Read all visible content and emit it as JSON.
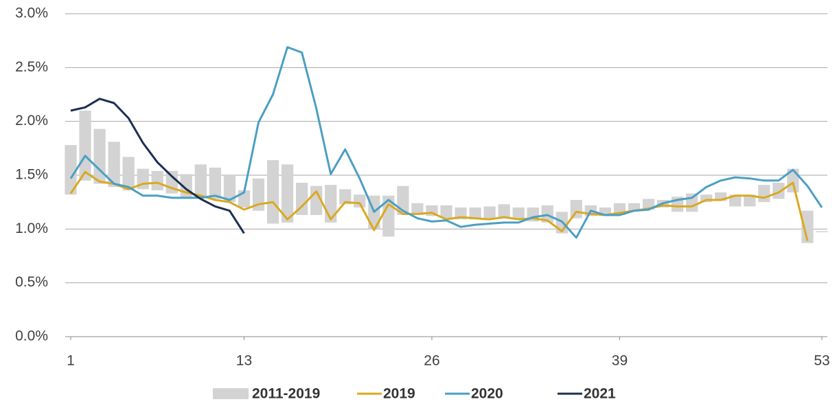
{
  "chart_data": {
    "type": "line",
    "x": [
      1,
      2,
      3,
      4,
      5,
      6,
      7,
      8,
      9,
      10,
      11,
      12,
      13,
      14,
      15,
      16,
      17,
      18,
      19,
      20,
      21,
      22,
      23,
      24,
      25,
      26,
      27,
      28,
      29,
      30,
      31,
      32,
      33,
      34,
      35,
      36,
      37,
      38,
      39,
      40,
      41,
      42,
      43,
      44,
      45,
      46,
      47,
      48,
      49,
      50,
      51,
      52,
      53
    ],
    "xlim": [
      1,
      53
    ],
    "xticks": [
      1,
      13,
      26,
      39,
      53
    ],
    "ylim": [
      0,
      3
    ],
    "yticks": [
      {
        "value": 0,
        "label": "0.0%"
      },
      {
        "value": 0.5,
        "label": "0.5%"
      },
      {
        "value": 1,
        "label": "1.0%"
      },
      {
        "value": 1.5,
        "label": "1.5%"
      },
      {
        "value": 2,
        "label": "2.0%"
      },
      {
        "value": 2.5,
        "label": "2.5%"
      },
      {
        "value": 3,
        "label": "3.0%"
      }
    ],
    "grid": true,
    "legend": "bottom",
    "series": [
      {
        "name": "2011-2019",
        "type": "range",
        "color": "#d3d3d3",
        "low": [
          1.32,
          1.45,
          1.42,
          1.39,
          1.36,
          1.37,
          1.36,
          1.33,
          1.3,
          1.29,
          1.28,
          1.25,
          1.2,
          1.17,
          1.05,
          1.06,
          1.13,
          1.13,
          1.06,
          1.23,
          1.2,
          1.0,
          0.93,
          1.13,
          1.13,
          1.12,
          1.1,
          1.09,
          1.09,
          1.09,
          1.1,
          1.09,
          1.07,
          1.06,
          0.96,
          1.1,
          1.12,
          1.12,
          1.13,
          1.17,
          1.18,
          1.2,
          1.16,
          1.16,
          1.25,
          1.26,
          1.21,
          1.21,
          1.25,
          1.28,
          1.34,
          0.87,
          0.97
        ],
        "high": [
          1.78,
          2.1,
          1.93,
          1.81,
          1.67,
          1.56,
          1.54,
          1.54,
          1.51,
          1.6,
          1.57,
          1.5,
          1.36,
          1.47,
          1.64,
          1.6,
          1.43,
          1.4,
          1.41,
          1.37,
          1.32,
          1.31,
          1.31,
          1.4,
          1.24,
          1.22,
          1.22,
          1.2,
          1.2,
          1.21,
          1.23,
          1.2,
          1.2,
          1.22,
          1.16,
          1.27,
          1.22,
          1.2,
          1.24,
          1.24,
          1.28,
          1.27,
          1.3,
          1.33,
          1.32,
          1.34,
          1.32,
          1.32,
          1.41,
          1.43,
          1.56,
          1.17,
          0.98
        ]
      },
      {
        "name": "2019",
        "color": "#dba81f",
        "values": [
          1.33,
          1.53,
          1.44,
          1.42,
          1.37,
          1.42,
          1.43,
          1.38,
          1.34,
          1.31,
          1.27,
          1.25,
          1.18,
          1.23,
          1.25,
          1.09,
          1.21,
          1.35,
          1.09,
          1.25,
          1.24,
          0.99,
          1.23,
          1.14,
          1.14,
          1.15,
          1.09,
          1.11,
          1.1,
          1.09,
          1.11,
          1.09,
          1.1,
          1.08,
          0.98,
          1.16,
          1.14,
          1.13,
          1.15,
          1.17,
          1.19,
          1.22,
          1.21,
          1.21,
          1.27,
          1.27,
          1.31,
          1.31,
          1.29,
          1.34,
          1.43,
          0.89,
          null
        ]
      },
      {
        "name": "2020",
        "color": "#4a9fc4",
        "values": [
          1.47,
          1.68,
          1.55,
          1.42,
          1.39,
          1.31,
          1.31,
          1.29,
          1.29,
          1.29,
          1.31,
          1.27,
          1.34,
          1.99,
          2.25,
          2.69,
          2.64,
          2.12,
          1.51,
          1.74,
          1.47,
          1.16,
          1.27,
          1.17,
          1.1,
          1.07,
          1.08,
          1.02,
          1.04,
          1.05,
          1.06,
          1.06,
          1.11,
          1.13,
          1.07,
          0.92,
          1.17,
          1.13,
          1.13,
          1.17,
          1.18,
          1.24,
          1.27,
          1.29,
          1.39,
          1.45,
          1.48,
          1.47,
          1.45,
          1.45,
          1.55,
          1.4,
          1.2
        ]
      },
      {
        "name": "2021",
        "color": "#1b2f52",
        "values": [
          2.1,
          2.13,
          2.21,
          2.17,
          2.03,
          1.8,
          1.62,
          1.49,
          1.37,
          1.28,
          1.21,
          1.17,
          0.96,
          null,
          null,
          null,
          null,
          null,
          null,
          null,
          null,
          null,
          null,
          null,
          null,
          null,
          null,
          null,
          null,
          null,
          null,
          null,
          null,
          null,
          null,
          null,
          null,
          null,
          null,
          null,
          null,
          null,
          null,
          null,
          null,
          null,
          null,
          null,
          null,
          null,
          null,
          null,
          null
        ]
      }
    ]
  }
}
